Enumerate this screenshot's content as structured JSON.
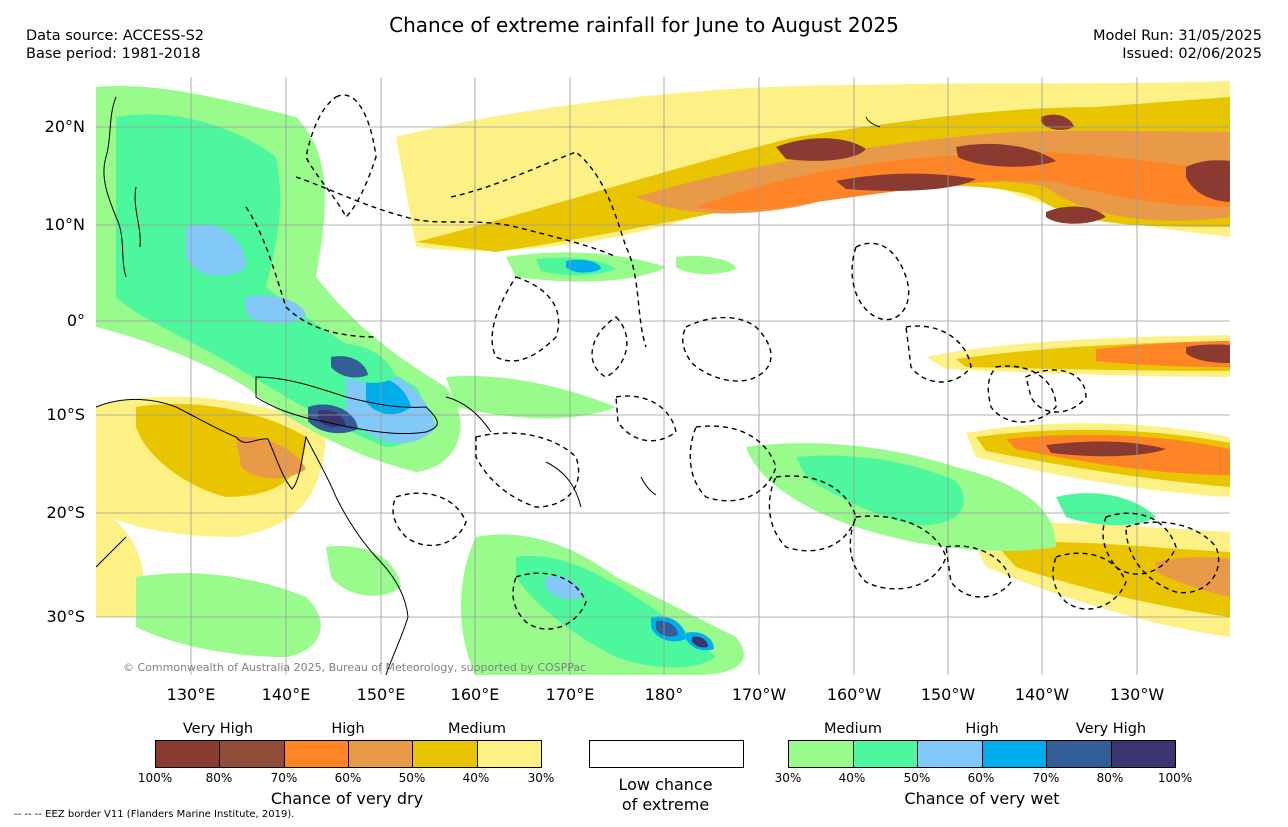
{
  "header": {
    "title": "Chance of extreme rainfall for June to August 2025",
    "data_source": "Data source: ACCESS-S2",
    "base_period": "Base period: 1981-2018",
    "model_run": "Model Run: 31/05/2025",
    "issued": "Issued: 02/06/2025"
  },
  "map": {
    "lat_labels": [
      "20°N",
      "10°N",
      "0°",
      "10°S",
      "20°S",
      "30°S"
    ],
    "lon_labels": [
      "130°E",
      "140°E",
      "150°E",
      "160°E",
      "170°E",
      "180°",
      "170°W",
      "160°W",
      "150°W",
      "140°W",
      "130°W"
    ],
    "copyright": "© Commonwealth of Australia 2025, Bureau of Meteorology, supported by COSPPac"
  },
  "legend": {
    "dry": {
      "headers": [
        "Very High",
        "High",
        "Medium"
      ],
      "colors": [
        "#8a3a30",
        "#8f4c38",
        "#ff8426",
        "#e99a48",
        "#e9c400",
        "#fdf185"
      ],
      "ticks": [
        "100%",
        "80%",
        "70%",
        "60%",
        "50%",
        "40%",
        "30%"
      ],
      "caption": "Chance of very dry"
    },
    "low": {
      "color": "#ffffff",
      "caption_line1": "Low chance",
      "caption_line2": "of extreme"
    },
    "wet": {
      "headers": [
        "Medium",
        "High",
        "Very High"
      ],
      "colors": [
        "#98fb8c",
        "#4cf79e",
        "#82c8f8",
        "#00aeee",
        "#325d96",
        "#3a3571"
      ],
      "ticks": [
        "30%",
        "40%",
        "50%",
        "60%",
        "70%",
        "80%",
        "100%"
      ],
      "caption": "Chance of very wet"
    }
  },
  "footnote": "--  --  -- EEZ border V11 (Flanders Marine Institute, 2019)."
}
